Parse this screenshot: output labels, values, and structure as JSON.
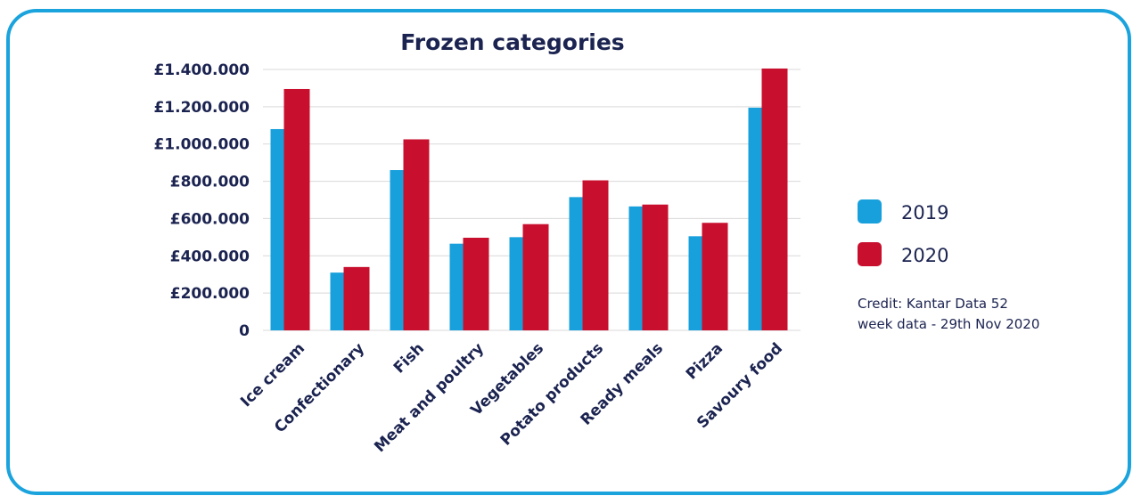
{
  "chart_data": {
    "type": "bar",
    "title": "Frozen categories",
    "categories": [
      "Ice cream",
      "Confectionary",
      "Fish",
      "Meat and poultry",
      "Vegetables",
      "Potato products",
      "Ready meals",
      "Pizza",
      "Savoury food"
    ],
    "series": [
      {
        "name": "2019",
        "color": "#18a0dc",
        "values": [
          1080000,
          310000,
          860000,
          465000,
          500000,
          715000,
          665000,
          505000,
          1195000
        ]
      },
      {
        "name": "2020",
        "color": "#c8102e",
        "values": [
          1295000,
          340000,
          1025000,
          497000,
          570000,
          805000,
          675000,
          577000,
          1405000
        ]
      }
    ],
    "yticks": [
      {
        "value": 0,
        "label": "0"
      },
      {
        "value": 200000,
        "label": "£200.000"
      },
      {
        "value": 400000,
        "label": "£400.000"
      },
      {
        "value": 600000,
        "label": "£600.000"
      },
      {
        "value": 800000,
        "label": "£800.000"
      },
      {
        "value": 1000000,
        "label": "£1.000.000"
      },
      {
        "value": 1200000,
        "label": "£1.200.000"
      },
      {
        "value": 1400000,
        "label": "£1.400.000"
      }
    ],
    "ylim": [
      0,
      1400000
    ],
    "grid": true,
    "legend_position": "right",
    "xlabel": "",
    "ylabel": ""
  },
  "credit": {
    "line1": "Credit: Kantar Data 52",
    "line2": "week data - 29th Nov 2020"
  },
  "colors": {
    "frame": "#1aa3dc",
    "text": "#1b2350",
    "grid": "#d9d9d9"
  }
}
